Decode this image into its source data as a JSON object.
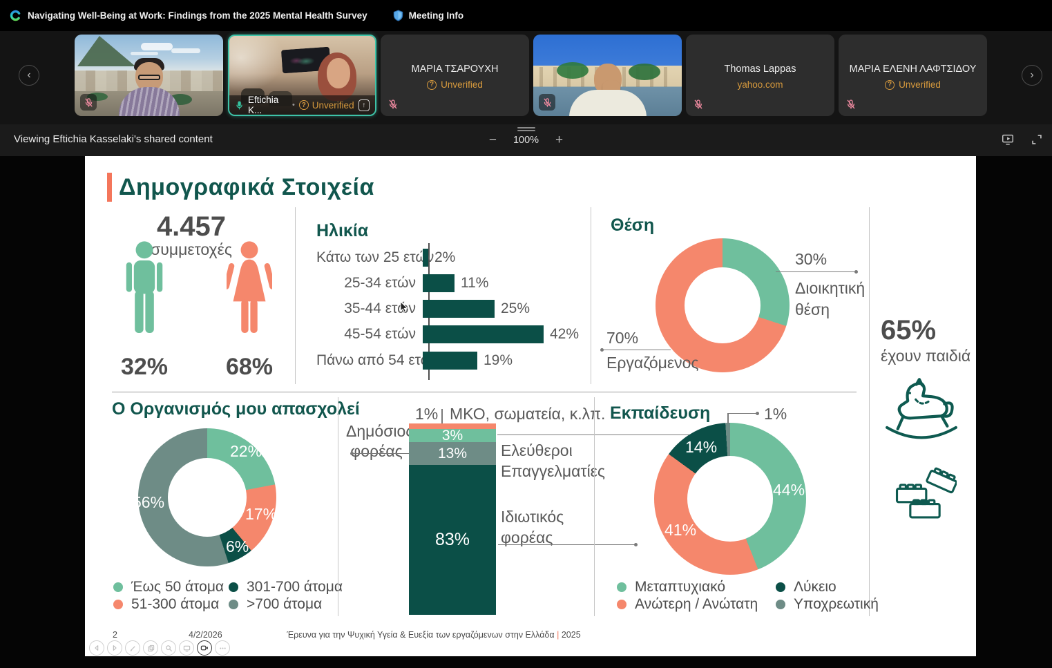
{
  "topbar": {
    "title": "Navigating Well-Being at Work: Findings from the 2025 Mental Health Survey",
    "meeting_info": "Meeting Info"
  },
  "filmstrip": {
    "participants": [
      {
        "kind": "video",
        "mic": "muted"
      },
      {
        "kind": "video",
        "name": "Eftichia K...",
        "verification": "Unverified",
        "mic": "on",
        "active": true,
        "sharing": true
      },
      {
        "kind": "placeholder",
        "name": "ΜΑΡΙΑ ΤΣΑΡΟΥΧΗ",
        "verification": "Unverified",
        "mic": "muted"
      },
      {
        "kind": "video",
        "mic": "muted"
      },
      {
        "kind": "placeholder",
        "name": "Thomas Lappas",
        "email_domain": "yahoo.com",
        "mic": "muted"
      },
      {
        "kind": "placeholder",
        "name": "ΜΑΡΙΑ ΕΛΕΝΗ ΛΑΦΤΣΙΔΟΥ",
        "verification": "Unverified",
        "mic": "muted"
      }
    ]
  },
  "share_bar": {
    "viewing": "Viewing Eftichia Kasselaki's shared content",
    "zoom_out": "−",
    "zoom_level": "100%",
    "zoom_in": "+"
  },
  "slide": {
    "title": "Δημογραφικά Στοιχεία",
    "participation": {
      "count": "4.457",
      "label": "συμμετοχές",
      "male_pct": "32%",
      "female_pct": "68%"
    },
    "children": {
      "value": "65%",
      "label": "έχουν παιδιά"
    },
    "footer": {
      "page": "2",
      "date": "4/2/2026",
      "text": "Έρευνα για την Ψυχική Υγεία & Ευεξία των εργαζόμενων στην Ελλάδα",
      "separator": "|",
      "year": "2025"
    }
  },
  "palette": {
    "green": "#6FBF9D",
    "salmon": "#F5876C",
    "dark_teal": "#0B4F47",
    "gray_green": "#6E8C86",
    "title_teal": "#11564D",
    "accent_orange": "#F4765B",
    "unverified_orange": "#D79A3D",
    "active_border": "#3EC3A8"
  },
  "chart_data": [
    {
      "type": "bar",
      "title": "Ηλικία",
      "orientation": "horizontal",
      "unit": "%",
      "categories": [
        "Κάτω των 25 ετών",
        "25-34 ετών",
        "35-44 ετών",
        "45-54 ετών",
        "Πάνω από 54 ετών"
      ],
      "values": [
        2,
        11,
        25,
        42,
        19
      ],
      "labels": [
        "2%",
        "11%",
        "25%",
        "42%",
        "19%"
      ],
      "bar_color": "#0B4F47"
    },
    {
      "type": "pie",
      "title": "Θέση",
      "slices": [
        {
          "label": "Διοικητική θέση",
          "value": 30,
          "pct": "30%",
          "color": "#6FBF9D"
        },
        {
          "label": "Εργαζόμενος",
          "value": 70,
          "pct": "70%",
          "color": "#F5876C"
        }
      ]
    },
    {
      "type": "pie",
      "title": "Ο Οργανισμός μου απασχολεί",
      "slices": [
        {
          "label": "Έως 50 άτομα",
          "value": 22,
          "pct": "22%",
          "color": "#6FBF9D"
        },
        {
          "label": "51-300 άτομα",
          "value": 17,
          "pct": "17%",
          "color": "#F5876C"
        },
        {
          "label": "301-700 άτομα",
          "value": 6,
          "pct": "6%",
          "color": "#0B4F47"
        },
        {
          "label": ">700 άτομα",
          "value": 56,
          "pct": "56%",
          "color": "#6E8C86"
        }
      ]
    },
    {
      "type": "bar",
      "stacked": true,
      "title": "",
      "segments": [
        {
          "label": "ΜΚΟ, σωματεία, κ.λπ.",
          "value": 1,
          "pct": "1%",
          "color": "#F5876C"
        },
        {
          "label": "Ελεύθεροι Επαγγελματίες",
          "value": 3,
          "pct": "3%",
          "color": "#6FBF9D"
        },
        {
          "label": "Δημόσιος φορέας",
          "value": 13,
          "pct": "13%",
          "color": "#6E8C86"
        },
        {
          "label": "Ιδιωτικός φορέας",
          "value": 83,
          "pct": "83%",
          "color": "#0B4F47"
        }
      ]
    },
    {
      "type": "pie",
      "title": "Εκπαίδευση",
      "slices": [
        {
          "label": "Μεταπτυχιακό",
          "value": 44,
          "pct": "44%",
          "color": "#6FBF9D"
        },
        {
          "label": "Ανώτερη / Ανώτατη",
          "value": 41,
          "pct": "41%",
          "color": "#F5876C"
        },
        {
          "label": "Λύκειο",
          "value": 14,
          "pct": "14%",
          "color": "#0B4F47"
        },
        {
          "label": "Υποχρεωτική",
          "value": 1,
          "pct": "1%",
          "color": "#6E8C86"
        }
      ]
    }
  ]
}
